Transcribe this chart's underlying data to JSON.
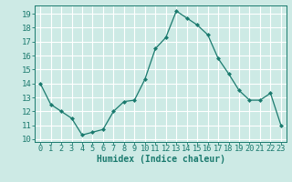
{
  "x": [
    0,
    1,
    2,
    3,
    4,
    5,
    6,
    7,
    8,
    9,
    10,
    11,
    12,
    13,
    14,
    15,
    16,
    17,
    18,
    19,
    20,
    21,
    22,
    23
  ],
  "y": [
    14.0,
    12.5,
    12.0,
    11.5,
    10.3,
    10.5,
    10.7,
    12.0,
    12.7,
    12.8,
    14.3,
    16.5,
    17.3,
    19.2,
    18.7,
    18.2,
    17.5,
    15.8,
    14.7,
    13.5,
    12.8,
    12.8,
    13.3,
    11.0
  ],
  "line_color": "#1a7a6e",
  "marker": "D",
  "marker_size": 2.0,
  "bg_color": "#cdeae5",
  "grid_color": "#ffffff",
  "xlabel": "Humidex (Indice chaleur)",
  "xlabel_fontsize": 7,
  "xlim": [
    -0.5,
    23.5
  ],
  "ylim": [
    9.8,
    19.6
  ],
  "yticks": [
    10,
    11,
    12,
    13,
    14,
    15,
    16,
    17,
    18,
    19
  ],
  "tick_fontsize": 6.5,
  "linewidth": 0.9
}
